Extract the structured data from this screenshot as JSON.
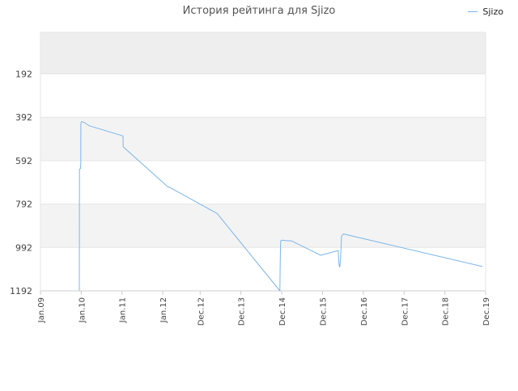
{
  "chart_data": {
    "type": "line",
    "title": "История рейтинга для Sjizo",
    "series": [
      {
        "name": "Sjizo",
        "color": "#7cb5ec",
        "points": [
          [
            "2009-12-15",
            1190
          ],
          [
            "2009-12-16",
            631
          ],
          [
            "2009-12-25",
            628
          ],
          [
            "2009-12-26",
            617
          ],
          [
            "2009-12-28",
            615
          ],
          [
            "2009-12-29",
            422
          ],
          [
            "2010-01-01",
            413
          ],
          [
            "2010-01-08",
            412
          ],
          [
            "2010-01-15",
            414
          ],
          [
            "2010-02-01",
            416
          ],
          [
            "2010-02-10",
            421
          ],
          [
            "2010-03-15",
            431
          ],
          [
            "2011-01-10",
            478
          ],
          [
            "2011-01-12",
            528
          ],
          [
            "2012-02-20",
            715
          ],
          [
            "2012-02-25",
            713
          ],
          [
            "2013-05-01",
            835
          ],
          [
            "2014-11-15",
            1192
          ],
          [
            "2014-11-17",
            1090
          ],
          [
            "2014-11-20",
            1000
          ],
          [
            "2014-11-22",
            962
          ],
          [
            "2014-11-28",
            960
          ],
          [
            "2014-12-05",
            958
          ],
          [
            "2015-01-01",
            960
          ],
          [
            "2015-03-01",
            962
          ],
          [
            "2015-11-15",
            1028
          ],
          [
            "2016-04-20",
            1006
          ],
          [
            "2016-04-25",
            1060
          ],
          [
            "2016-05-01",
            1082
          ],
          [
            "2016-05-05",
            1080
          ],
          [
            "2016-05-10",
            1052
          ],
          [
            "2016-05-15",
            1002
          ],
          [
            "2016-05-20",
            940
          ],
          [
            "2016-06-01",
            932
          ],
          [
            "2016-06-10",
            929
          ],
          [
            "2016-06-15",
            931
          ],
          [
            "2019-11-01",
            1080
          ]
        ]
      }
    ],
    "x_axis": {
      "type": "datetime",
      "ticks": [
        {
          "label": "Jan.09",
          "date": "2009-01-01"
        },
        {
          "label": "Jan.10",
          "date": "2010-01-01"
        },
        {
          "label": "Jan.11",
          "date": "2011-01-01"
        },
        {
          "label": "Jan.12",
          "date": "2012-01-01"
        },
        {
          "label": "Dec.12",
          "date": "2012-12-01"
        },
        {
          "label": "Dec.13",
          "date": "2013-12-01"
        },
        {
          "label": "Dec.14",
          "date": "2014-12-01"
        },
        {
          "label": "Dec.15",
          "date": "2015-12-01"
        },
        {
          "label": "Dec.16",
          "date": "2016-12-01"
        },
        {
          "label": "Dec.17",
          "date": "2017-12-01"
        },
        {
          "label": "Dec.18",
          "date": "2018-12-01"
        },
        {
          "label": "Dec.19",
          "date": "2019-12-01"
        }
      ],
      "range": [
        "2009-01-01",
        "2019-12-01"
      ]
    },
    "y_axis": {
      "reversed": true,
      "range": [
        0,
        1192
      ],
      "ticks": [
        192,
        392,
        592,
        792,
        992,
        1192
      ],
      "tick_labels": [
        "192",
        "392",
        "592",
        "792",
        "992",
        "1192"
      ],
      "band_colors": [
        "#eeeeee",
        "#ffffff",
        "#f3f3f3",
        "#ffffff",
        "#f3f3f3",
        "#ffffff"
      ]
    },
    "legend": {
      "position": "top-right"
    },
    "grid": true
  }
}
